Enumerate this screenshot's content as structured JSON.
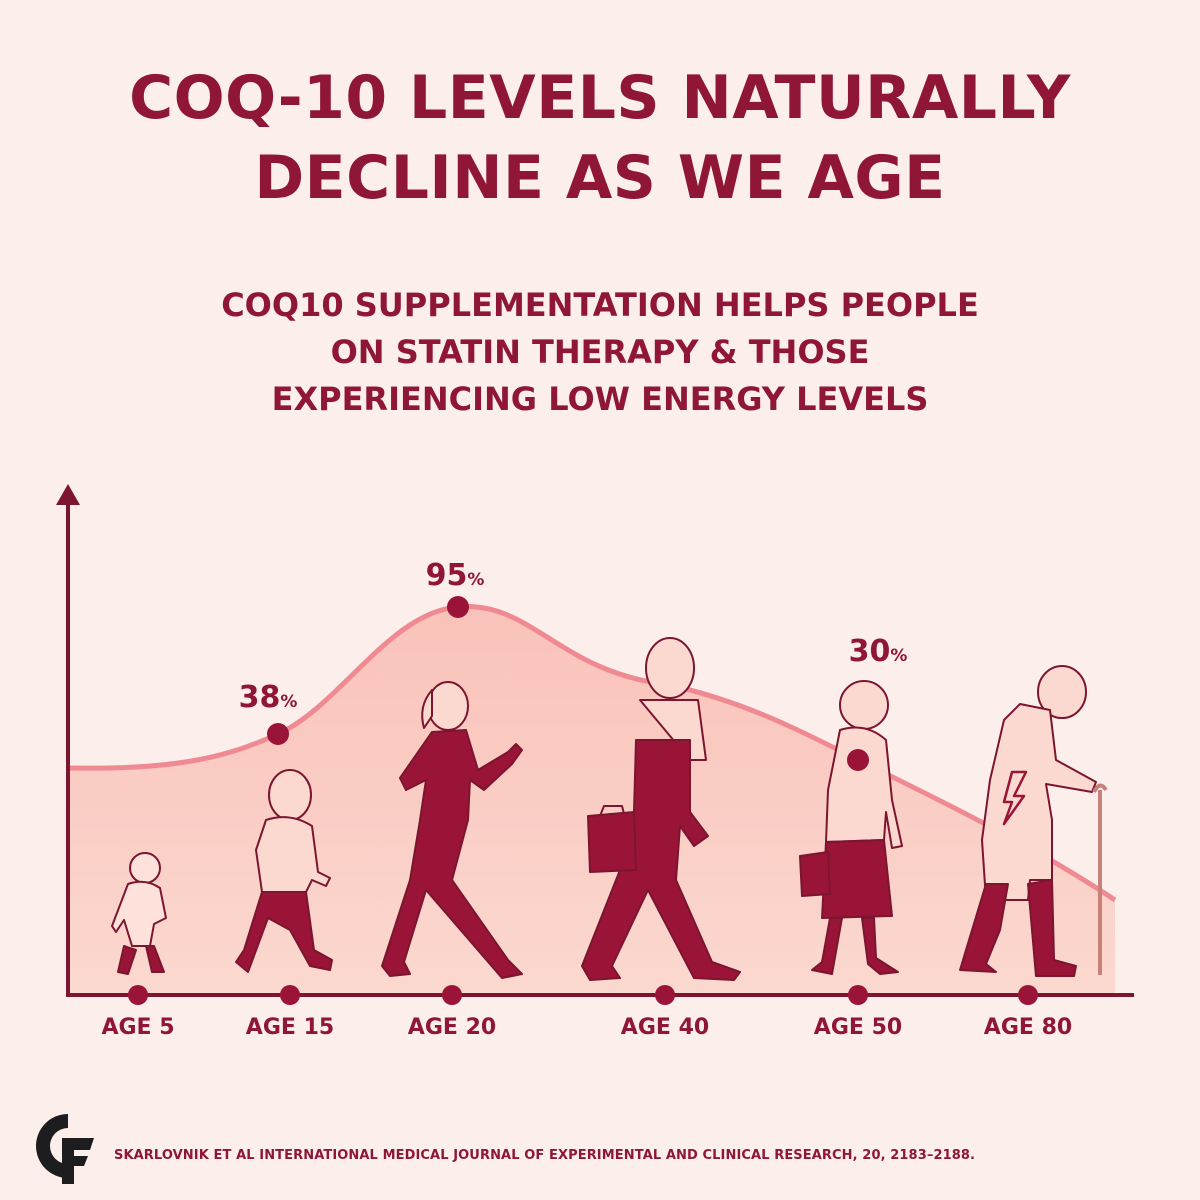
{
  "title": {
    "line1": "COQ-10 LEVELS NATURALLY",
    "line2": "DECLINE AS WE AGE"
  },
  "subtitle": {
    "line1": "COQ10 SUPPLEMENTATION HELPS PEOPLE",
    "line2": "ON STATIN THERAPY & THOSE",
    "line3": "EXPERIENCING LOW ENERGY LEVELS"
  },
  "chart_data": {
    "type": "area",
    "x_labels": [
      "AGE 5",
      "AGE 15",
      "AGE 20",
      "AGE 40",
      "AGE 50",
      "AGE 80"
    ],
    "x": [
      5,
      15,
      20,
      40,
      50,
      80
    ],
    "value_labels": [
      {
        "x": 15,
        "value": "38",
        "unit": "%"
      },
      {
        "x": 20,
        "value": "95",
        "unit": "%"
      },
      {
        "x": 50,
        "value": "30",
        "unit": "%"
      }
    ],
    "curve_points": [
      {
        "x": 0,
        "y": 40
      },
      {
        "x": 15,
        "y": 38
      },
      {
        "x": 20,
        "y": 95
      },
      {
        "x": 40,
        "y": 62
      },
      {
        "x": 50,
        "y": 30
      },
      {
        "x": 80,
        "y": 10
      }
    ],
    "grid": false,
    "legend": "none",
    "colors": {
      "line": "#ef8a93",
      "fill": "#f9c8c0",
      "axis": "#7c1530",
      "marker": "#9a1438",
      "text": "#8f1634"
    },
    "figures": [
      {
        "age": 5,
        "figure": "toddler"
      },
      {
        "age": 15,
        "figure": "child"
      },
      {
        "age": 20,
        "figure": "young-woman-with-phone"
      },
      {
        "age": 40,
        "figure": "man-with-briefcase"
      },
      {
        "age": 50,
        "figure": "older-woman"
      },
      {
        "age": 80,
        "figure": "elderly-man-with-cane"
      }
    ]
  },
  "logo": {
    "name": "cf-logo-icon"
  },
  "citation": "SKARLOVNIK ET AL INTERNATIONAL MEDICAL JOURNAL OF EXPERIMENTAL AND CLINICAL RESEARCH, 20, 2183–2188."
}
